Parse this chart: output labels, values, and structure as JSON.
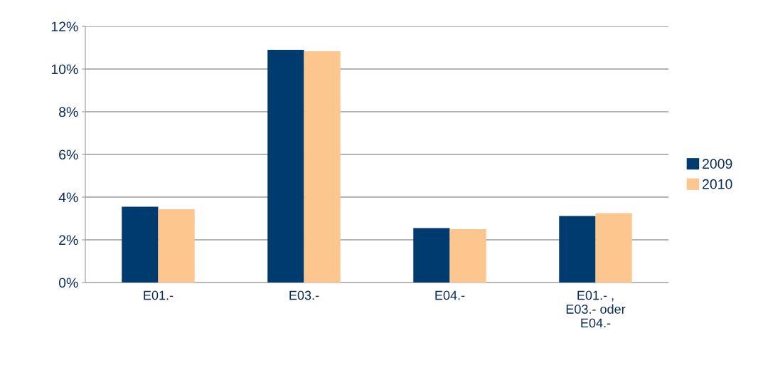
{
  "chart_data": {
    "type": "bar",
    "categories": [
      "E01.-",
      "E03.-",
      "E04.-",
      "E01.- ,\nE03.- oder\nE04.-"
    ],
    "series": [
      {
        "name": "2009",
        "color": "#003b6f",
        "values": [
          3.55,
          10.9,
          2.55,
          3.12
        ]
      },
      {
        "name": "2010",
        "color": "#fdc68f",
        "values": [
          3.43,
          10.83,
          2.5,
          3.25
        ]
      }
    ],
    "ylim": [
      0,
      12
    ],
    "yticks": [
      {
        "value": 0,
        "label": "0%"
      },
      {
        "value": 2,
        "label": "2%"
      },
      {
        "value": 4,
        "label": "4%"
      },
      {
        "value": 6,
        "label": "6%"
      },
      {
        "value": 8,
        "label": "8%"
      },
      {
        "value": 10,
        "label": "10%"
      },
      {
        "value": 12,
        "label": "12%"
      }
    ],
    "grid": "y",
    "legend": "right"
  }
}
